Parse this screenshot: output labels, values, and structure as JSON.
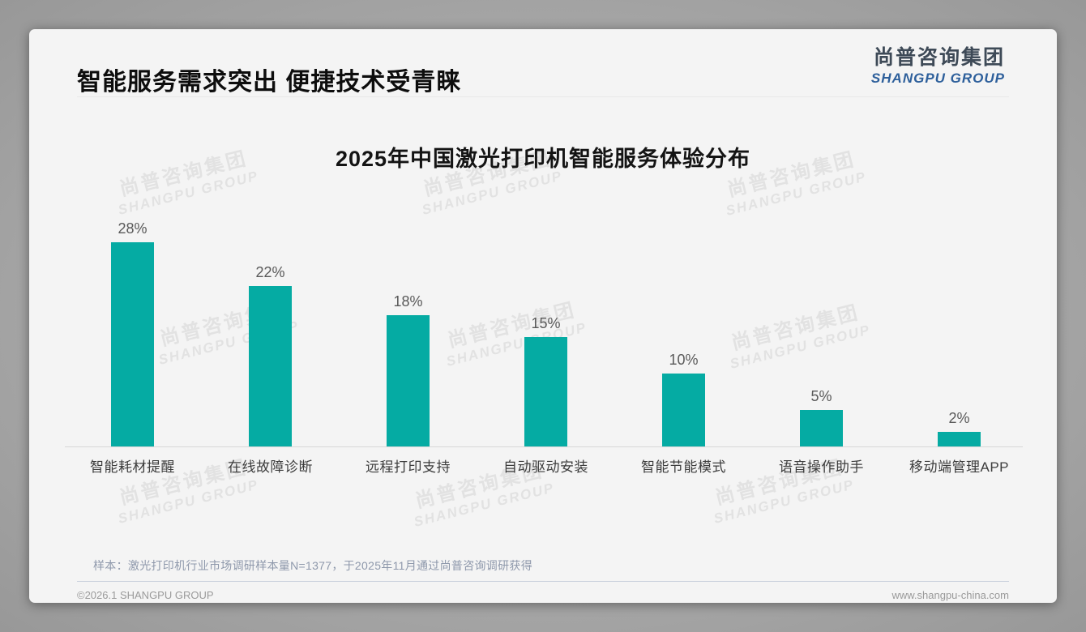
{
  "page": {
    "title": "智能服务需求突出 便捷技术受青睐",
    "footnote": "样本：激光打印机行业市场调研样本量N=1377，于2025年11月通过尚普咨询调研获得",
    "footer_left": "©2026.1 SHANGPU GROUP",
    "footer_right": "www.shangpu-china.com"
  },
  "logo": {
    "cn": "尚普咨询集团",
    "en": "SHANGPU GROUP"
  },
  "watermark": {
    "line1": "尚普咨询集团",
    "line2": "SHANGPU GROUP"
  },
  "colors": {
    "bar": "#05aba3",
    "logo_blue": "#2d5f9b",
    "logo_dark": "#3e4a57",
    "card_background": "#f4f4f4"
  },
  "chart_data": {
    "type": "bar",
    "title": "2025年中国激光打印机智能服务体验分布",
    "categories": [
      "智能耗材提醒",
      "在线故障诊断",
      "远程打印支持",
      "自动驱动安装",
      "智能节能模式",
      "语音操作助手",
      "移动端管理APP"
    ],
    "values": [
      28,
      22,
      18,
      15,
      10,
      5,
      2
    ],
    "value_labels": [
      "28%",
      "22%",
      "18%",
      "15%",
      "10%",
      "5%",
      "2%"
    ],
    "unit": "%",
    "ylim": [
      0,
      30
    ],
    "grid": false,
    "legend": false,
    "xlabel": "",
    "ylabel": ""
  }
}
